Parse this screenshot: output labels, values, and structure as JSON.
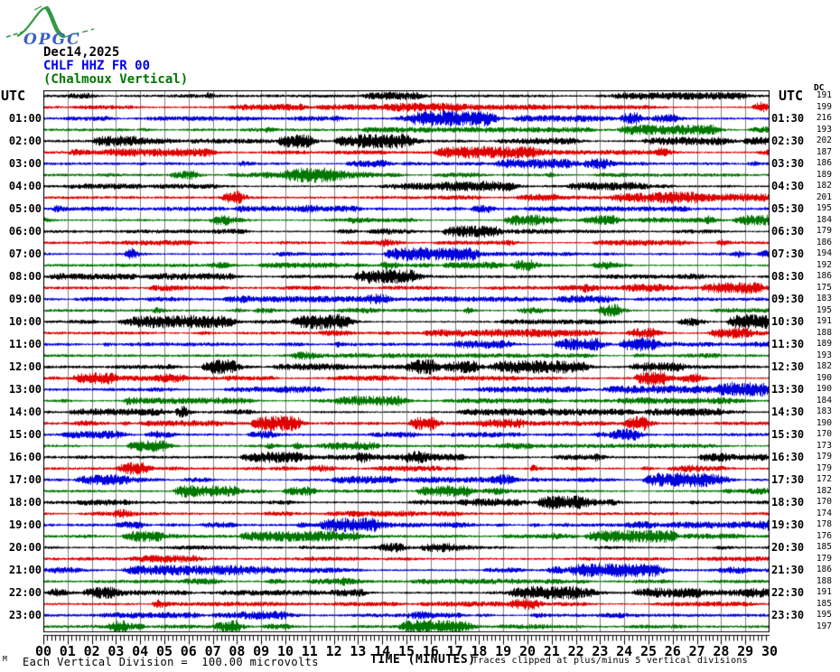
{
  "logo": {
    "text": "OPGC"
  },
  "header": {
    "date": "Dec14,2025",
    "station_code": "CHLF HHZ FR 00",
    "station_name": "(Chalmoux Vertical)"
  },
  "axes": {
    "left_header": "UTC",
    "right_header": "UTC",
    "dc_header": "DC",
    "x_title": "TIME (MINUTES)",
    "x_ticks": [
      "00",
      "01",
      "02",
      "03",
      "04",
      "05",
      "06",
      "07",
      "08",
      "09",
      "10",
      "11",
      "12",
      "13",
      "14",
      "15",
      "16",
      "17",
      "18",
      "19",
      "20",
      "21",
      "22",
      "23",
      "24",
      "25",
      "26",
      "27",
      "28",
      "29",
      "30"
    ]
  },
  "footer": {
    "corner_glyph": "M",
    "left_note": "Each Vertical Division =  100.00 microvolts",
    "right_note": "Traces clipped at plus/minus 5 vertical divisions"
  },
  "colors": {
    "trace_cycle": [
      "#000000",
      "#e00000",
      "#0000dd",
      "#007700"
    ],
    "grid": "#808080",
    "border": "#000000",
    "title_date": "#000000",
    "title_station": "#0000ee",
    "title_name": "#007700",
    "logo_green": "#339944",
    "logo_blue": "#3a5fc8"
  },
  "rows": [
    {
      "left_label": "",
      "right_label": "",
      "dc": 191
    },
    {
      "left_label": "",
      "right_label": "",
      "dc": 199
    },
    {
      "left_label": "01:00",
      "right_label": "01:30",
      "dc": 216
    },
    {
      "left_label": "",
      "right_label": "",
      "dc": 193
    },
    {
      "left_label": "02:00",
      "right_label": "02:30",
      "dc": 202
    },
    {
      "left_label": "",
      "right_label": "",
      "dc": 187
    },
    {
      "left_label": "03:00",
      "right_label": "03:30",
      "dc": 186
    },
    {
      "left_label": "",
      "right_label": "",
      "dc": 189
    },
    {
      "left_label": "04:00",
      "right_label": "04:30",
      "dc": 182
    },
    {
      "left_label": "",
      "right_label": "",
      "dc": 201
    },
    {
      "left_label": "05:00",
      "right_label": "05:30",
      "dc": 195
    },
    {
      "left_label": "",
      "right_label": "",
      "dc": 184
    },
    {
      "left_label": "06:00",
      "right_label": "06:30",
      "dc": 179
    },
    {
      "left_label": "",
      "right_label": "",
      "dc": 186
    },
    {
      "left_label": "07:00",
      "right_label": "07:30",
      "dc": 194
    },
    {
      "left_label": "",
      "right_label": "",
      "dc": 192
    },
    {
      "left_label": "08:00",
      "right_label": "08:30",
      "dc": 186
    },
    {
      "left_label": "",
      "right_label": "",
      "dc": 175
    },
    {
      "left_label": "09:00",
      "right_label": "09:30",
      "dc": 183
    },
    {
      "left_label": "",
      "right_label": "",
      "dc": 195
    },
    {
      "left_label": "10:00",
      "right_label": "10:30",
      "dc": 191
    },
    {
      "left_label": "",
      "right_label": "",
      "dc": 188
    },
    {
      "left_label": "11:00",
      "right_label": "11:30",
      "dc": 189
    },
    {
      "left_label": "",
      "right_label": "",
      "dc": 193
    },
    {
      "left_label": "12:00",
      "right_label": "12:30",
      "dc": 182
    },
    {
      "left_label": "",
      "right_label": "",
      "dc": 190
    },
    {
      "left_label": "13:00",
      "right_label": "13:30",
      "dc": 190
    },
    {
      "left_label": "",
      "right_label": "",
      "dc": 184
    },
    {
      "left_label": "14:00",
      "right_label": "14:30",
      "dc": 183
    },
    {
      "left_label": "",
      "right_label": "",
      "dc": 190
    },
    {
      "left_label": "15:00",
      "right_label": "15:30",
      "dc": 170
    },
    {
      "left_label": "",
      "right_label": "",
      "dc": 173
    },
    {
      "left_label": "16:00",
      "right_label": "16:30",
      "dc": 179
    },
    {
      "left_label": "",
      "right_label": "",
      "dc": 179
    },
    {
      "left_label": "17:00",
      "right_label": "17:30",
      "dc": 172
    },
    {
      "left_label": "",
      "right_label": "",
      "dc": 182
    },
    {
      "left_label": "18:00",
      "right_label": "18:30",
      "dc": 170
    },
    {
      "left_label": "",
      "right_label": "",
      "dc": 174
    },
    {
      "left_label": "19:00",
      "right_label": "19:30",
      "dc": 178
    },
    {
      "left_label": "",
      "right_label": "",
      "dc": 176
    },
    {
      "left_label": "20:00",
      "right_label": "20:30",
      "dc": 185
    },
    {
      "left_label": "",
      "right_label": "",
      "dc": 179
    },
    {
      "left_label": "21:00",
      "right_label": "21:30",
      "dc": 186
    },
    {
      "left_label": "",
      "right_label": "",
      "dc": 188
    },
    {
      "left_label": "22:00",
      "right_label": "22:30",
      "dc": 191
    },
    {
      "left_label": "",
      "right_label": "",
      "dc": 185
    },
    {
      "left_label": "23:00",
      "right_label": "23:30",
      "dc": 195
    },
    {
      "left_label": "",
      "right_label": "",
      "dc": 197
    }
  ],
  "chart_data": {
    "type": "line",
    "title": "Helicorder drum plot: CHLF HHZ FR 00 (Chalmoux Vertical), Dec14,2025",
    "xlabel": "TIME (MINUTES)",
    "x_range_minutes": [
      0,
      30
    ],
    "lines_per_hour": 2,
    "minutes_per_line": 30,
    "num_lines": 48,
    "line_start_times_utc": "00:00 through 23:30 in 30-minute steps, top to bottom",
    "dc_offsets_per_line": [
      191,
      199,
      216,
      193,
      202,
      187,
      186,
      189,
      182,
      201,
      195,
      184,
      179,
      186,
      194,
      192,
      186,
      175,
      183,
      195,
      191,
      188,
      189,
      193,
      182,
      190,
      190,
      184,
      183,
      190,
      170,
      173,
      179,
      179,
      172,
      182,
      170,
      174,
      178,
      176,
      185,
      179,
      186,
      188,
      191,
      185,
      195,
      197
    ],
    "vertical_division_microvolts": 100.0,
    "clip_divisions": 5,
    "trace_color_cycle": [
      "black",
      "red",
      "blue",
      "green"
    ],
    "grid": "vertical gridlines every 1 minute",
    "legend_position": "none",
    "series_note": "continuous broadband seismic noise with intermittent bursts; waveform samples not individually resolvable"
  }
}
